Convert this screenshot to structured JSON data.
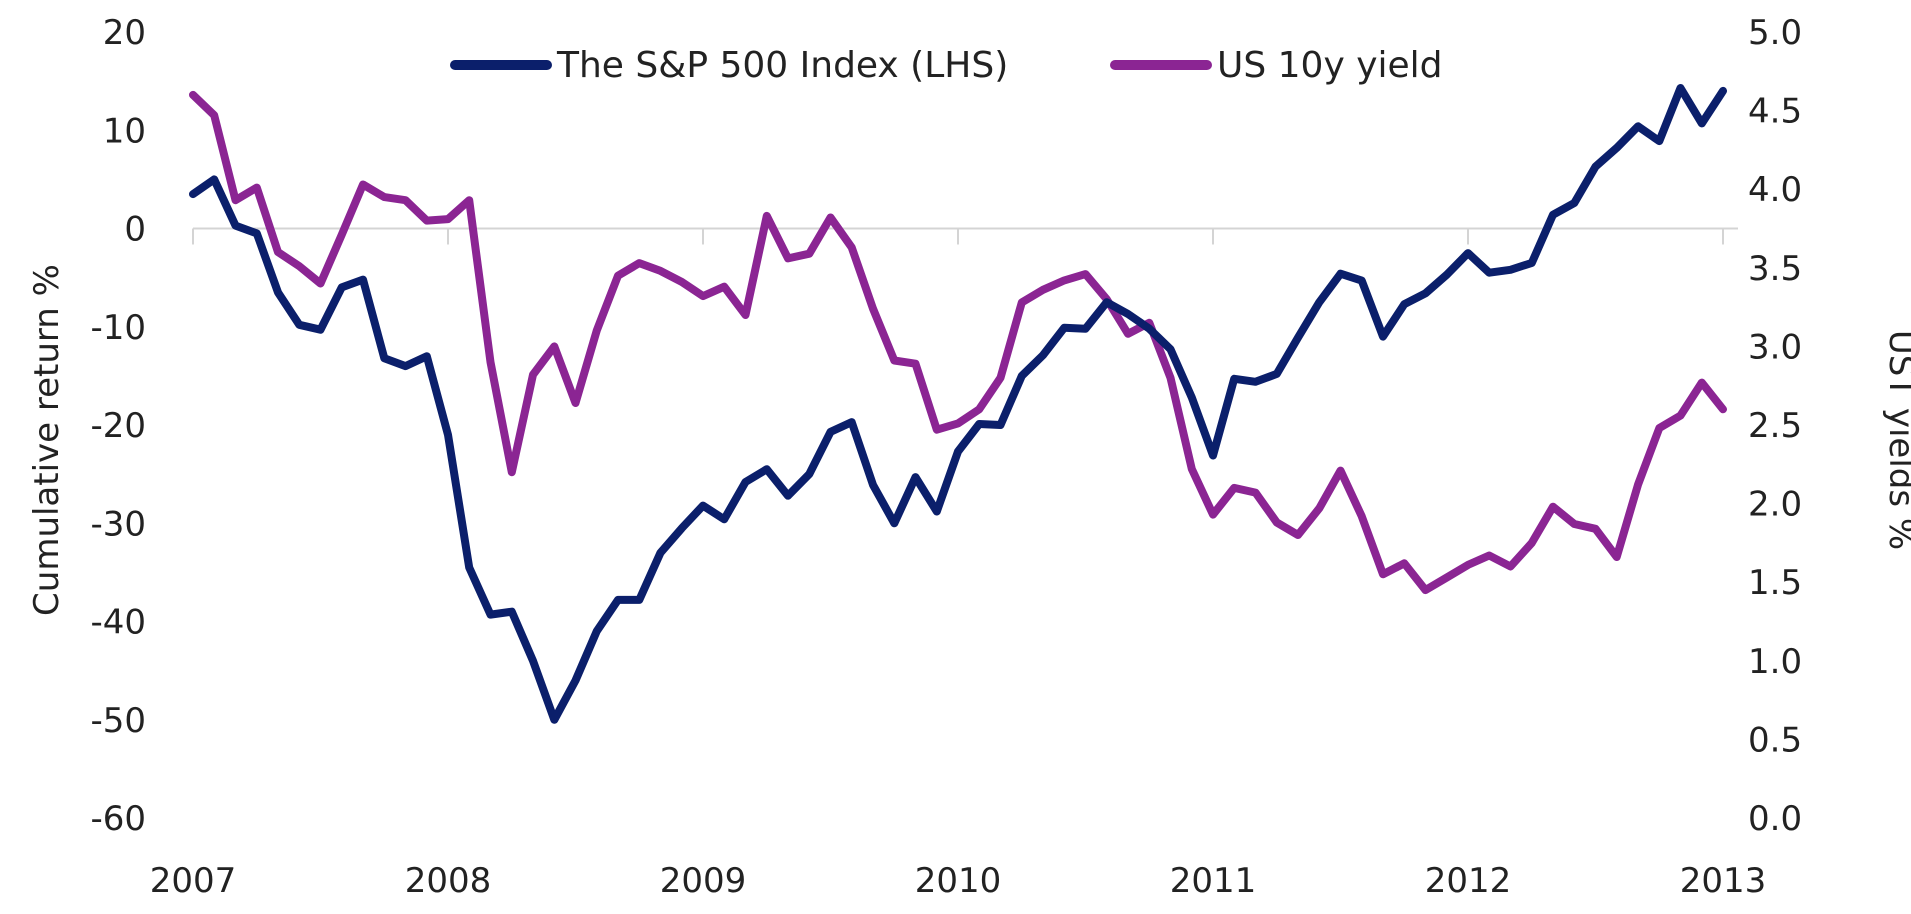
{
  "chart_data": {
    "type": "line",
    "title": "",
    "xlabel": "",
    "ylabel": "Cumulative return %",
    "y2label": "UST yields %",
    "ylim": [
      -60,
      20
    ],
    "y2lim": [
      0,
      5
    ],
    "xlim": [
      2007,
      2013
    ],
    "x_ticks": [
      "2007",
      "2008",
      "2009",
      "2010",
      "2011",
      "2012",
      "2013"
    ],
    "y_ticks": [
      "20",
      "10",
      "0",
      "-10",
      "-20",
      "-30",
      "-40",
      "-50",
      "-60"
    ],
    "y2_ticks": [
      "5.0",
      "4.5",
      "4.0",
      "3.5",
      "3.0",
      "2.5",
      "2.0",
      "1.5",
      "1.0",
      "0.5",
      "0.0"
    ],
    "legend_position": "top-center",
    "zero_line": true,
    "x": [
      2007.0,
      2007.0833,
      2007.1667,
      2007.25,
      2007.3333,
      2007.4167,
      2007.5,
      2007.5833,
      2007.6667,
      2007.75,
      2007.8333,
      2007.9167,
      2008.0,
      2008.0833,
      2008.1667,
      2008.25,
      2008.3333,
      2008.4167,
      2008.5,
      2008.5833,
      2008.6667,
      2008.75,
      2008.8333,
      2008.9167,
      2009.0,
      2009.0833,
      2009.1667,
      2009.25,
      2009.3333,
      2009.4167,
      2009.5,
      2009.5833,
      2009.6667,
      2009.75,
      2009.8333,
      2009.9167,
      2010.0,
      2010.0833,
      2010.1667,
      2010.25,
      2010.3333,
      2010.4167,
      2010.5,
      2010.5833,
      2010.6667,
      2010.75,
      2010.8333,
      2010.9167,
      2011.0,
      2011.0833,
      2011.1667,
      2011.25,
      2011.3333,
      2011.4167,
      2011.5,
      2011.5833,
      2011.6667,
      2011.75,
      2011.8333,
      2011.9167,
      2012.0,
      2012.0833,
      2012.1667,
      2012.25,
      2012.3333,
      2012.4167,
      2012.5,
      2012.5833,
      2012.6667,
      2012.75,
      2012.8333,
      2012.9167,
      2013.0
    ],
    "series": [
      {
        "name": "The S&P 500 Index (LHS)",
        "axis": "left",
        "color": "#0b1f6b",
        "values": [
          3.5,
          5,
          0.3,
          -0.5,
          -6.5,
          -9.8,
          -10.3,
          -6,
          -5.2,
          -13.2,
          -14,
          -13,
          -21,
          -34.5,
          -39.3,
          -39,
          -44,
          -50,
          -46,
          -41,
          -37.8,
          -37.8,
          -33,
          -30.5,
          -28.2,
          -29.6,
          -25.8,
          -24.5,
          -27.2,
          -25,
          -20.7,
          -19.7,
          -26.1,
          -30,
          -25.3,
          -28.8,
          -22.7,
          -19.9,
          -20,
          -15,
          -12.9,
          -10.1,
          -10.2,
          -7.5,
          -8.7,
          -10.2,
          -12.3,
          -17.2,
          -23.1,
          -15.3,
          -15.6,
          -14.8,
          -11.1,
          -7.5,
          -4.6,
          -5.3,
          -11,
          -7.7,
          -6.6,
          -4.7,
          -2.5,
          -4.5,
          -4.2,
          -3.5,
          1.4,
          2.6,
          6.3,
          8.2,
          10.4,
          8.9,
          14.3,
          10.7,
          14
        ]
      },
      {
        "name": "US 10y yield",
        "axis": "right",
        "color": "#8b2593",
        "values": [
          4.6,
          4.47,
          3.93,
          4.01,
          3.6,
          3.51,
          3.4,
          3.71,
          4.03,
          3.95,
          3.93,
          3.8,
          3.81,
          3.93,
          2.9,
          2.2,
          2.82,
          3,
          2.64,
          3.1,
          3.45,
          3.53,
          3.48,
          3.41,
          3.32,
          3.38,
          3.2,
          3.83,
          3.56,
          3.59,
          3.82,
          3.63,
          3.24,
          2.91,
          2.89,
          2.47,
          2.51,
          2.6,
          2.8,
          3.28,
          3.36,
          3.42,
          3.46,
          3.3,
          3.08,
          3.15,
          2.8,
          2.22,
          1.93,
          2.1,
          2.07,
          1.88,
          1.8,
          1.97,
          2.21,
          1.92,
          1.55,
          1.62,
          1.45,
          1.53,
          1.61,
          1.67,
          1.6,
          1.75,
          1.98,
          1.87,
          1.84,
          1.66,
          2.12,
          2.48,
          2.56,
          2.77,
          2.6
        ]
      }
    ]
  }
}
